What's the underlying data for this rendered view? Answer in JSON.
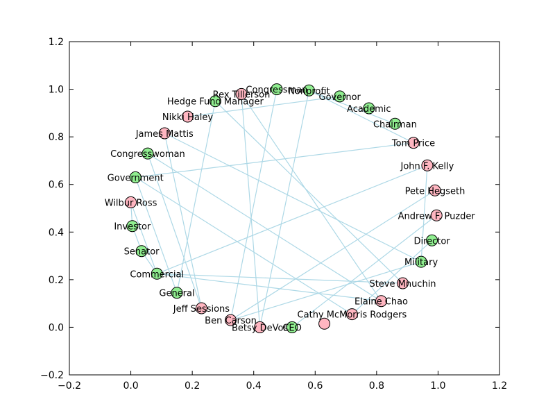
{
  "chart_data": {
    "type": "scatter",
    "subtype": "network-graph",
    "title": "",
    "xlabel": "",
    "ylabel": "",
    "xlim": [
      -0.2,
      1.2
    ],
    "ylim": [
      -0.2,
      1.2
    ],
    "xticks": [
      "−0.2",
      "0.0",
      "0.2",
      "0.4",
      "0.6",
      "0.8",
      "1.0",
      "1.2"
    ],
    "xtick_values": [
      -0.2,
      0.0,
      0.2,
      0.4,
      0.6,
      0.8,
      1.0,
      1.2
    ],
    "yticks": [
      "−0.2",
      "0.0",
      "0.2",
      "0.4",
      "0.6",
      "0.8",
      "1.0",
      "1.2"
    ],
    "ytick_values": [
      -0.2,
      0.0,
      0.2,
      0.4,
      0.6,
      0.8,
      1.0,
      1.2
    ],
    "grid": false,
    "colors": {
      "person_node": "#ffb6c1",
      "category_node": "#90ee90",
      "edge": "#add8e6",
      "node_outline": "#000000"
    },
    "nodes": [
      {
        "id": "rex",
        "label": "Rex Tillerson",
        "kind": "person",
        "x": 0.36,
        "y": 0.98
      },
      {
        "id": "nikki",
        "label": "Nikki Haley",
        "kind": "person",
        "x": 0.185,
        "y": 0.885
      },
      {
        "id": "mattis",
        "label": "James Mattis",
        "kind": "person",
        "x": 0.11,
        "y": 0.815
      },
      {
        "id": "ross",
        "label": "Wilbur Ross",
        "kind": "person",
        "x": 0.0,
        "y": 0.525
      },
      {
        "id": "sessions",
        "label": "Jeff Sessions",
        "kind": "person",
        "x": 0.23,
        "y": 0.08
      },
      {
        "id": "carson",
        "label": "Ben Carson",
        "kind": "person",
        "x": 0.325,
        "y": 0.03
      },
      {
        "id": "devos",
        "label": "Betsy DeVos",
        "kind": "person",
        "x": 0.42,
        "y": 0.0
      },
      {
        "id": "cathy",
        "label": "Cathy McMorris Rodgers",
        "kind": "person",
        "x": 0.72,
        "y": 0.055
      },
      {
        "id": "unlabeled",
        "label": "",
        "kind": "person",
        "x": 0.63,
        "y": 0.015
      },
      {
        "id": "chao",
        "label": "Elaine Chao",
        "kind": "person",
        "x": 0.815,
        "y": 0.11
      },
      {
        "id": "mnuchin",
        "label": "Steve Mnuchin",
        "kind": "person",
        "x": 0.885,
        "y": 0.185
      },
      {
        "id": "puzder",
        "label": "Andrew F. Puzder",
        "kind": "person",
        "x": 0.995,
        "y": 0.47
      },
      {
        "id": "hegseth",
        "label": "Pete Hegseth",
        "kind": "person",
        "x": 0.99,
        "y": 0.575
      },
      {
        "id": "kelly",
        "label": "John F. Kelly",
        "kind": "person",
        "x": 0.965,
        "y": 0.68
      },
      {
        "id": "price",
        "label": "Tom Price",
        "kind": "person",
        "x": 0.92,
        "y": 0.775
      },
      {
        "id": "congressman",
        "label": "Congressman",
        "kind": "category",
        "x": 0.475,
        "y": 1.0
      },
      {
        "id": "nonprofit",
        "label": "Nonprofit",
        "kind": "category",
        "x": 0.58,
        "y": 0.995
      },
      {
        "id": "governor",
        "label": "Governor",
        "kind": "category",
        "x": 0.68,
        "y": 0.97
      },
      {
        "id": "academic",
        "label": "Academic",
        "kind": "category",
        "x": 0.775,
        "y": 0.92
      },
      {
        "id": "chairman",
        "label": "Chairman",
        "kind": "category",
        "x": 0.86,
        "y": 0.855
      },
      {
        "id": "hedge",
        "label": "Hedge Fund Manager",
        "kind": "category",
        "x": 0.275,
        "y": 0.95
      },
      {
        "id": "congresswoman",
        "label": "Congresswoman",
        "kind": "category",
        "x": 0.055,
        "y": 0.73
      },
      {
        "id": "government",
        "label": "Government",
        "kind": "category",
        "x": 0.015,
        "y": 0.63
      },
      {
        "id": "investor",
        "label": "Investor",
        "kind": "category",
        "x": 0.005,
        "y": 0.425
      },
      {
        "id": "senator",
        "label": "Senator",
        "kind": "category",
        "x": 0.035,
        "y": 0.32
      },
      {
        "id": "commercial",
        "label": "Commercial",
        "kind": "category",
        "x": 0.085,
        "y": 0.225
      },
      {
        "id": "general",
        "label": "General",
        "kind": "category",
        "x": 0.15,
        "y": 0.145
      },
      {
        "id": "ceo",
        "label": "CEO",
        "kind": "category",
        "x": 0.525,
        "y": 0.0
      },
      {
        "id": "military",
        "label": "Military",
        "kind": "category",
        "x": 0.945,
        "y": 0.275
      },
      {
        "id": "director",
        "label": "Director",
        "kind": "category",
        "x": 0.98,
        "y": 0.365
      }
    ],
    "edges": [
      [
        "nonprofit",
        "chairman"
      ],
      [
        "nonprofit",
        "price"
      ],
      [
        "nonprofit",
        "devos"
      ],
      [
        "congressman",
        "carson"
      ],
      [
        "governor",
        "nikki"
      ],
      [
        "hedge",
        "general"
      ],
      [
        "hedge",
        "mnuchin"
      ],
      [
        "rex",
        "chao"
      ],
      [
        "rex",
        "devos"
      ],
      [
        "mattis",
        "sessions"
      ],
      [
        "mattis",
        "military"
      ],
      [
        "government",
        "price"
      ],
      [
        "government",
        "cathy"
      ],
      [
        "government",
        "general"
      ],
      [
        "congresswoman",
        "sessions"
      ],
      [
        "congresswoman",
        "chao"
      ],
      [
        "senator",
        "commercial"
      ],
      [
        "commercial",
        "kelly"
      ],
      [
        "commercial",
        "mnuchin"
      ],
      [
        "commercial",
        "chao"
      ],
      [
        "carson",
        "hegseth"
      ],
      [
        "carson",
        "military"
      ],
      [
        "ross",
        "commercial"
      ],
      [
        "ross",
        "investor"
      ],
      [
        "cathy",
        "director"
      ],
      [
        "kelly",
        "military"
      ],
      [
        "ceo",
        "puzder"
      ],
      [
        "investor",
        "senator"
      ]
    ]
  }
}
